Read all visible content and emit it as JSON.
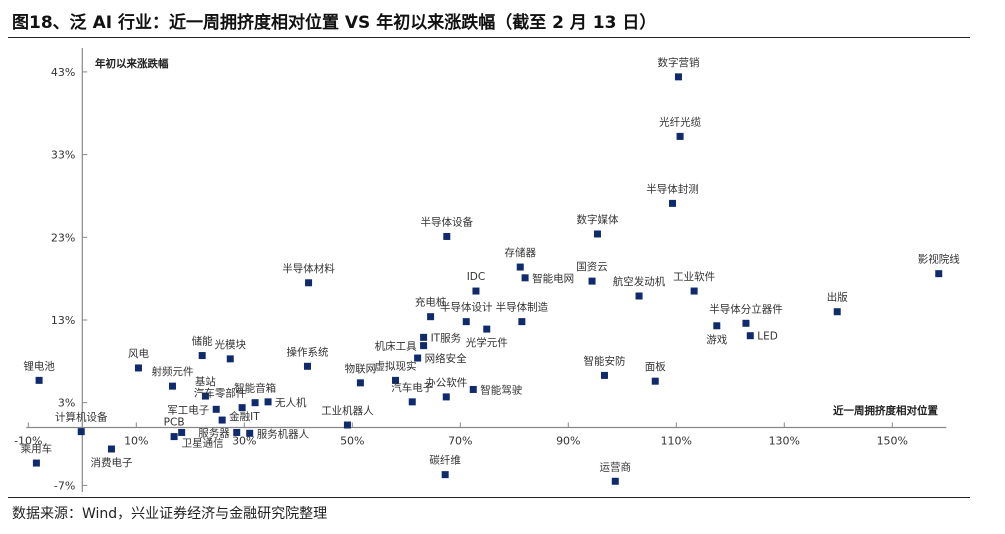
{
  "title": "图18、泛 AI 行业：近一周拥挤度相对位置 VS 年初以来涨跌幅（截至 2 月 13 日）",
  "source": "数据来源：Wind，兴业证券经济与金融研究院整理",
  "chart_data": {
    "type": "scatter",
    "xlabel": "近一周拥挤度相对位置",
    "ylabel": "年初以来涨跌幅",
    "xlim": [
      -10,
      160
    ],
    "ylim": [
      -7,
      45
    ],
    "x_ticks": [
      "-10%",
      "10%",
      "30%",
      "50%",
      "70%",
      "90%",
      "110%",
      "130%",
      "150%"
    ],
    "x_tick_values": [
      -10,
      10,
      30,
      50,
      70,
      90,
      110,
      130,
      150
    ],
    "y_ticks": [
      "-7%",
      "3%",
      "13%",
      "23%",
      "33%",
      "43%"
    ],
    "y_tick_values": [
      -7,
      3,
      13,
      23,
      33,
      43
    ],
    "grid": false,
    "marker_color": "#0f2b6e",
    "points": [
      {
        "name": "数字营销",
        "x": 110.4,
        "y": 42.4
      },
      {
        "name": "光纤光缆",
        "x": 110.7,
        "y": 35.2
      },
      {
        "name": "半导体封测",
        "x": 109.3,
        "y": 27.1
      },
      {
        "name": "数字媒体",
        "x": 95.4,
        "y": 23.4
      },
      {
        "name": "国资云",
        "x": 94.4,
        "y": 17.7
      },
      {
        "name": "航空发动机",
        "x": 103.1,
        "y": 15.9
      },
      {
        "name": "工业软件",
        "x": 113.3,
        "y": 16.5
      },
      {
        "name": "影视院线",
        "x": 158.6,
        "y": 18.6
      },
      {
        "name": "出版",
        "x": 139.8,
        "y": 14.0
      },
      {
        "name": "半导体分立器件",
        "x": 122.9,
        "y": 12.6
      },
      {
        "name": "游戏",
        "x": 117.5,
        "y": 12.3
      },
      {
        "name": "LED",
        "x": 123.7,
        "y": 11.1
      },
      {
        "name": "智能安防",
        "x": 96.7,
        "y": 6.3
      },
      {
        "name": "面板",
        "x": 106.1,
        "y": 5.6
      },
      {
        "name": "运营商",
        "x": 98.7,
        "y": -6.5
      },
      {
        "name": "半导体设备",
        "x": 67.5,
        "y": 23.1
      },
      {
        "name": "半导体材料",
        "x": 41.9,
        "y": 17.5
      },
      {
        "name": "存储器",
        "x": 81.1,
        "y": 19.4
      },
      {
        "name": "智能电网",
        "x": 82.0,
        "y": 18.1
      },
      {
        "name": "IDC",
        "x": 72.9,
        "y": 16.5
      },
      {
        "name": "充电桩",
        "x": 64.5,
        "y": 13.4
      },
      {
        "name": "半导体设计",
        "x": 71.1,
        "y": 12.8
      },
      {
        "name": "光学元件",
        "x": 74.9,
        "y": 11.9
      },
      {
        "name": "半导体制造",
        "x": 81.4,
        "y": 12.8
      },
      {
        "name": "IT服务",
        "x": 63.2,
        "y": 10.9
      },
      {
        "name": "机床工具",
        "x": 63.2,
        "y": 9.9
      },
      {
        "name": "网络安全",
        "x": 62.1,
        "y": 8.4
      },
      {
        "name": "操作系统",
        "x": 41.7,
        "y": 7.4
      },
      {
        "name": "物联网",
        "x": 51.5,
        "y": 5.4
      },
      {
        "name": "虚拟现实",
        "x": 58.0,
        "y": 5.7
      },
      {
        "name": "汽车电子",
        "x": 61.1,
        "y": 3.1
      },
      {
        "name": "办公软件",
        "x": 67.4,
        "y": 3.7
      },
      {
        "name": "智能驾驶",
        "x": 72.4,
        "y": 4.6
      },
      {
        "name": "工业机器人",
        "x": 49.1,
        "y": 0.3
      },
      {
        "name": "碳纤维",
        "x": 67.2,
        "y": -5.7
      },
      {
        "name": "锂电池",
        "x": -8.0,
        "y": 5.7
      },
      {
        "name": "乘用车",
        "x": -8.5,
        "y": -4.3
      },
      {
        "name": "计算机设备",
        "x": -0.2,
        "y": -0.5
      },
      {
        "name": "消费电子",
        "x": 5.4,
        "y": -2.6
      },
      {
        "name": "风电",
        "x": 10.4,
        "y": 7.2
      },
      {
        "name": "射频元件",
        "x": 16.7,
        "y": 5.0
      },
      {
        "name": "储能",
        "x": 22.2,
        "y": 8.7
      },
      {
        "name": "光模块",
        "x": 27.4,
        "y": 8.3
      },
      {
        "name": "基站",
        "x": 22.8,
        "y": 3.8
      },
      {
        "name": "汽车零部件",
        "x": 29.6,
        "y": 2.4
      },
      {
        "name": "军工电子",
        "x": 24.8,
        "y": 2.2
      },
      {
        "name": "金融IT",
        "x": 25.9,
        "y": 0.9
      },
      {
        "name": "智能音箱",
        "x": 32.0,
        "y": 3.0
      },
      {
        "name": "无人机",
        "x": 34.4,
        "y": 3.1
      },
      {
        "name": "PCB",
        "x": 17.0,
        "y": -1.1
      },
      {
        "name": "卫星通信",
        "x": 18.4,
        "y": -0.6
      },
      {
        "name": "服务器",
        "x": 28.6,
        "y": -0.6
      },
      {
        "name": "服务机器人",
        "x": 31.0,
        "y": -0.7
      }
    ]
  }
}
